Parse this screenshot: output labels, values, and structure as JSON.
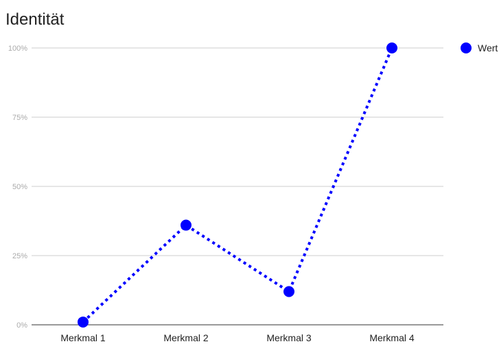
{
  "chart_data": {
    "type": "line",
    "title": "Identität",
    "xlabel": "",
    "ylabel": "",
    "categories": [
      "Merkmal 1",
      "Merkmal 2",
      "Merkmal 3",
      "Merkmal 4"
    ],
    "series": [
      {
        "name": "Wert",
        "values": [
          1,
          36,
          12,
          100
        ],
        "color": "#0000ff",
        "line_style": "dotted",
        "marker": "circle"
      }
    ],
    "ylim": [
      0,
      100
    ],
    "y_ticks": [
      0,
      25,
      50,
      75,
      100
    ],
    "y_tick_labels": [
      "0%",
      "25%",
      "50%",
      "75%",
      "100%"
    ],
    "grid": true,
    "legend_position": "right"
  }
}
